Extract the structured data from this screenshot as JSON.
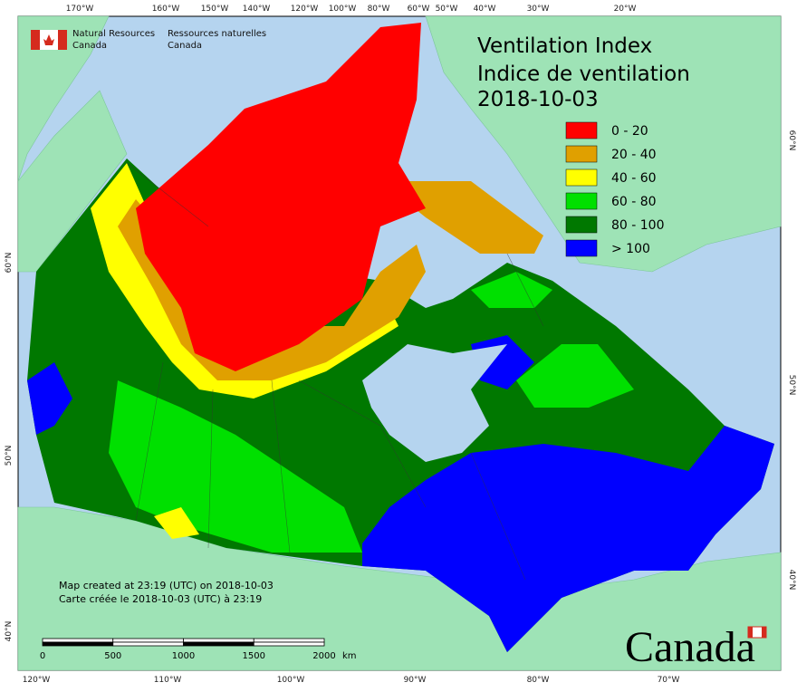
{
  "title": [
    "Ventilation Index",
    "Indice de ventilation",
    "2018-10-03"
  ],
  "agency": {
    "english": [
      "Natural Resources",
      "Canada"
    ],
    "french": [
      "Ressources naturelles",
      "Canada"
    ]
  },
  "legend": [
    {
      "label": "0 - 20",
      "color": "#ff0000"
    },
    {
      "label": "20 - 40",
      "color": "#e0a000"
    },
    {
      "label": "40 - 60",
      "color": "#ffff00"
    },
    {
      "label": "60 - 80",
      "color": "#00e000"
    },
    {
      "label": "80 - 100",
      "color": "#007800"
    },
    {
      "label": "> 100",
      "color": "#0000ff"
    }
  ],
  "top_longitudes": [
    "170°W",
    "160°W",
    "150°W",
    "140°W",
    "120°W",
    "100°W",
    "80°W",
    "60°W",
    "50°W",
    "40°W",
    "30°W",
    "20°W"
  ],
  "bottom_longitudes": [
    "120°W",
    "110°W",
    "100°W",
    "90°W",
    "80°W",
    "70°W"
  ],
  "left_latitudes": [
    "60°N",
    "50°N",
    "40°N"
  ],
  "right_latitudes": [
    "60°N",
    "50°N",
    "40°N"
  ],
  "notes": [
    "Map created at 23:19 (UTC) on 2018-10-03",
    "Carte créée le 2018-10-03 (UTC) à 23:19"
  ],
  "scale_bar": {
    "ticks": [
      0,
      500,
      1000,
      1500,
      2000
    ],
    "unit": "km"
  },
  "wordmark": "Canada"
}
